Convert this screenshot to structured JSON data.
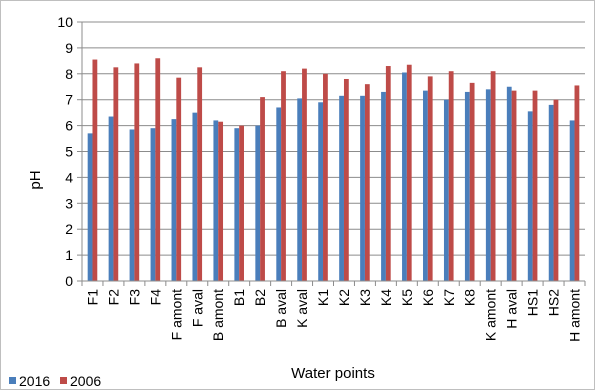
{
  "chart_data": {
    "type": "bar",
    "title": "",
    "xlabel": "Water points",
    "ylabel": "pH",
    "ylim": [
      0,
      10
    ],
    "yticks": [
      0,
      1,
      2,
      3,
      4,
      5,
      6,
      7,
      8,
      9,
      10
    ],
    "grid": "horizontal",
    "legend_position": "bottom-left",
    "categories": [
      "F1",
      "F2",
      "F3",
      "F4",
      "F amont",
      "F aval",
      "B amont",
      "B1",
      "B2",
      "B aval",
      "K aval",
      "K1",
      "K2",
      "K3",
      "K4",
      "K5",
      "K6",
      "K7",
      "K8",
      "K amont",
      "H aval",
      "HS1",
      "HS2",
      "H amont"
    ],
    "series": [
      {
        "name": "2016",
        "color": "#4a7ebb",
        "values": [
          5.7,
          6.35,
          5.85,
          5.9,
          6.25,
          6.5,
          6.2,
          5.9,
          6.0,
          6.7,
          7.05,
          6.9,
          7.15,
          7.15,
          7.3,
          8.05,
          7.35,
          7.0,
          7.3,
          7.4,
          7.5,
          6.55,
          6.8,
          6.2
        ]
      },
      {
        "name": "2006",
        "color": "#be4b48",
        "values": [
          8.55,
          8.25,
          8.4,
          8.6,
          7.85,
          8.25,
          6.15,
          6.0,
          7.1,
          8.1,
          8.2,
          8.0,
          7.8,
          7.6,
          8.3,
          8.35,
          7.9,
          8.1,
          7.65,
          8.1,
          7.35,
          7.35,
          7.0,
          7.55
        ]
      }
    ]
  }
}
